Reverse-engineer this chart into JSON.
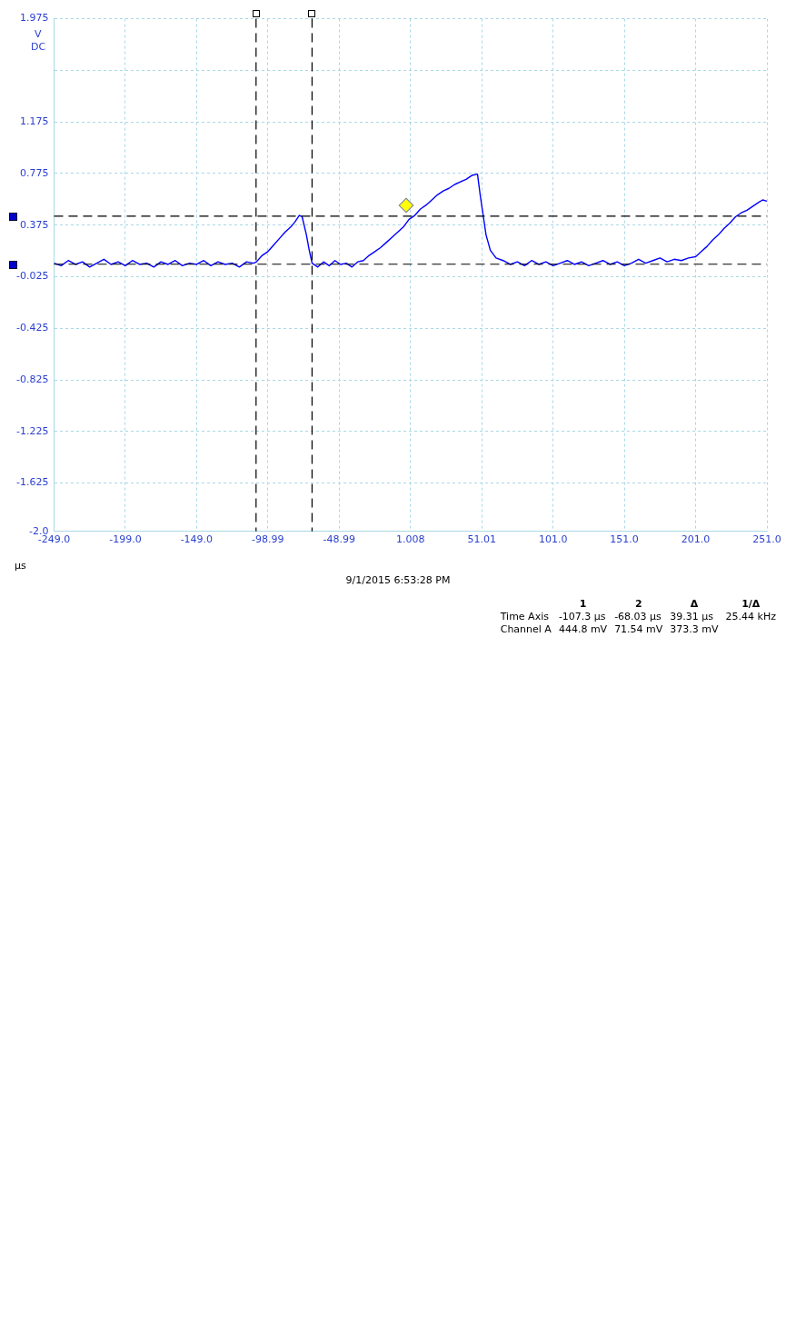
{
  "chart_data": {
    "type": "line",
    "xlabel": "µs",
    "ylabel": "V",
    "annotations": [
      "DC",
      "9/1/2015 6:53:28 PM",
      "1  2  Δ  1/Δ",
      "Time Axis  -107.3 µs  -68.03 µs  39.31 µs  25.44 kHz",
      "Channel A  444.8 mV  71.54 mV  373.3 mV"
    ],
    "xlim": [
      -249,
      251
    ],
    "xticks": [
      {
        "value": -249,
        "label": "-249.0"
      },
      {
        "value": -199,
        "label": "-199.0"
      },
      {
        "value": -149,
        "label": "-149.0"
      },
      -98.99,
      -48.99,
      1.008,
      51.01,
      {
        "value": 101,
        "label": "101.0"
      },
      {
        "value": 151,
        "label": "151.0"
      },
      {
        "value": 201,
        "label": "201.0"
      },
      {
        "value": 251,
        "label": "251.0"
      }
    ],
    "ylim": [
      -2.0,
      1.975
    ],
    "yticks": [
      {
        "value": -2.0,
        "label": "-2.0"
      },
      -1.625,
      -1.225,
      -0.825,
      -0.425,
      -0.025,
      0.375,
      0.775,
      1.175,
      {
        "value": 1.575,
        "label": null
      },
      1.975
    ],
    "grid": true,
    "legend": false,
    "marker": "none",
    "ref_lines": [
      {
        "axis": "y",
        "value": 0.4448,
        "color": "#000000",
        "line_style": "dashed"
      },
      {
        "axis": "y",
        "value": 0.07154,
        "color": "#000000",
        "line_style": "dashed"
      },
      {
        "axis": "x",
        "value": -107.3,
        "color": "#000000",
        "line_style": "dashed"
      },
      {
        "axis": "x",
        "value": -68.03,
        "color": "#000000",
        "line_style": "dashed"
      }
    ],
    "series": [
      {
        "color": "#0000ff",
        "x": [
          -249,
          -244,
          -239,
          -234,
          -229,
          -224,
          -219,
          -214,
          -209,
          -204,
          -199,
          -194,
          -189,
          -184,
          -179,
          -174,
          -169,
          -164,
          -159,
          -154,
          -149,
          -144,
          -139,
          -134,
          -129,
          -124,
          -119,
          -114,
          -109,
          -107,
          -103,
          -99,
          -95,
          -91,
          -87,
          -83,
          -80,
          -77,
          -75,
          -72,
          -70,
          -68,
          -64,
          -60,
          -56,
          -52,
          -48,
          -44,
          -40,
          -36,
          -32,
          -28,
          -24,
          -20,
          -16,
          -12,
          -8,
          -4,
          0,
          4,
          8,
          12,
          16,
          20,
          24,
          28,
          32,
          36,
          40,
          44,
          48,
          50,
          52,
          54,
          57,
          61,
          66,
          71,
          76,
          81,
          86,
          91,
          96,
          101,
          106,
          111,
          116,
          121,
          126,
          131,
          136,
          141,
          146,
          151,
          156,
          161,
          166,
          171,
          176,
          181,
          186,
          191,
          196,
          201,
          205,
          209,
          213,
          217,
          221,
          225,
          229,
          233,
          237,
          241,
          245,
          248,
          251
        ],
        "values": [
          0.08,
          0.06,
          0.1,
          0.07,
          0.09,
          0.05,
          0.08,
          0.11,
          0.07,
          0.09,
          0.06,
          0.1,
          0.07,
          0.08,
          0.05,
          0.09,
          0.07,
          0.1,
          0.06,
          0.08,
          0.07,
          0.1,
          0.06,
          0.09,
          0.07,
          0.08,
          0.05,
          0.09,
          0.08,
          0.09,
          0.14,
          0.17,
          0.22,
          0.27,
          0.32,
          0.36,
          0.4,
          0.45,
          0.44,
          0.3,
          0.18,
          0.08,
          0.05,
          0.09,
          0.06,
          0.1,
          0.07,
          0.08,
          0.05,
          0.09,
          0.1,
          0.14,
          0.17,
          0.2,
          0.24,
          0.28,
          0.32,
          0.36,
          0.42,
          0.45,
          0.5,
          0.53,
          0.57,
          0.61,
          0.64,
          0.66,
          0.69,
          0.71,
          0.73,
          0.76,
          0.77,
          0.6,
          0.45,
          0.3,
          0.18,
          0.12,
          0.1,
          0.07,
          0.09,
          0.06,
          0.1,
          0.07,
          0.09,
          0.06,
          0.08,
          0.1,
          0.07,
          0.09,
          0.06,
          0.08,
          0.1,
          0.07,
          0.09,
          0.06,
          0.08,
          0.11,
          0.08,
          0.1,
          0.12,
          0.09,
          0.11,
          0.1,
          0.12,
          0.13,
          0.17,
          0.21,
          0.26,
          0.3,
          0.35,
          0.39,
          0.44,
          0.47,
          0.49,
          0.52,
          0.55,
          0.57,
          0.56
        ]
      }
    ]
  }
}
